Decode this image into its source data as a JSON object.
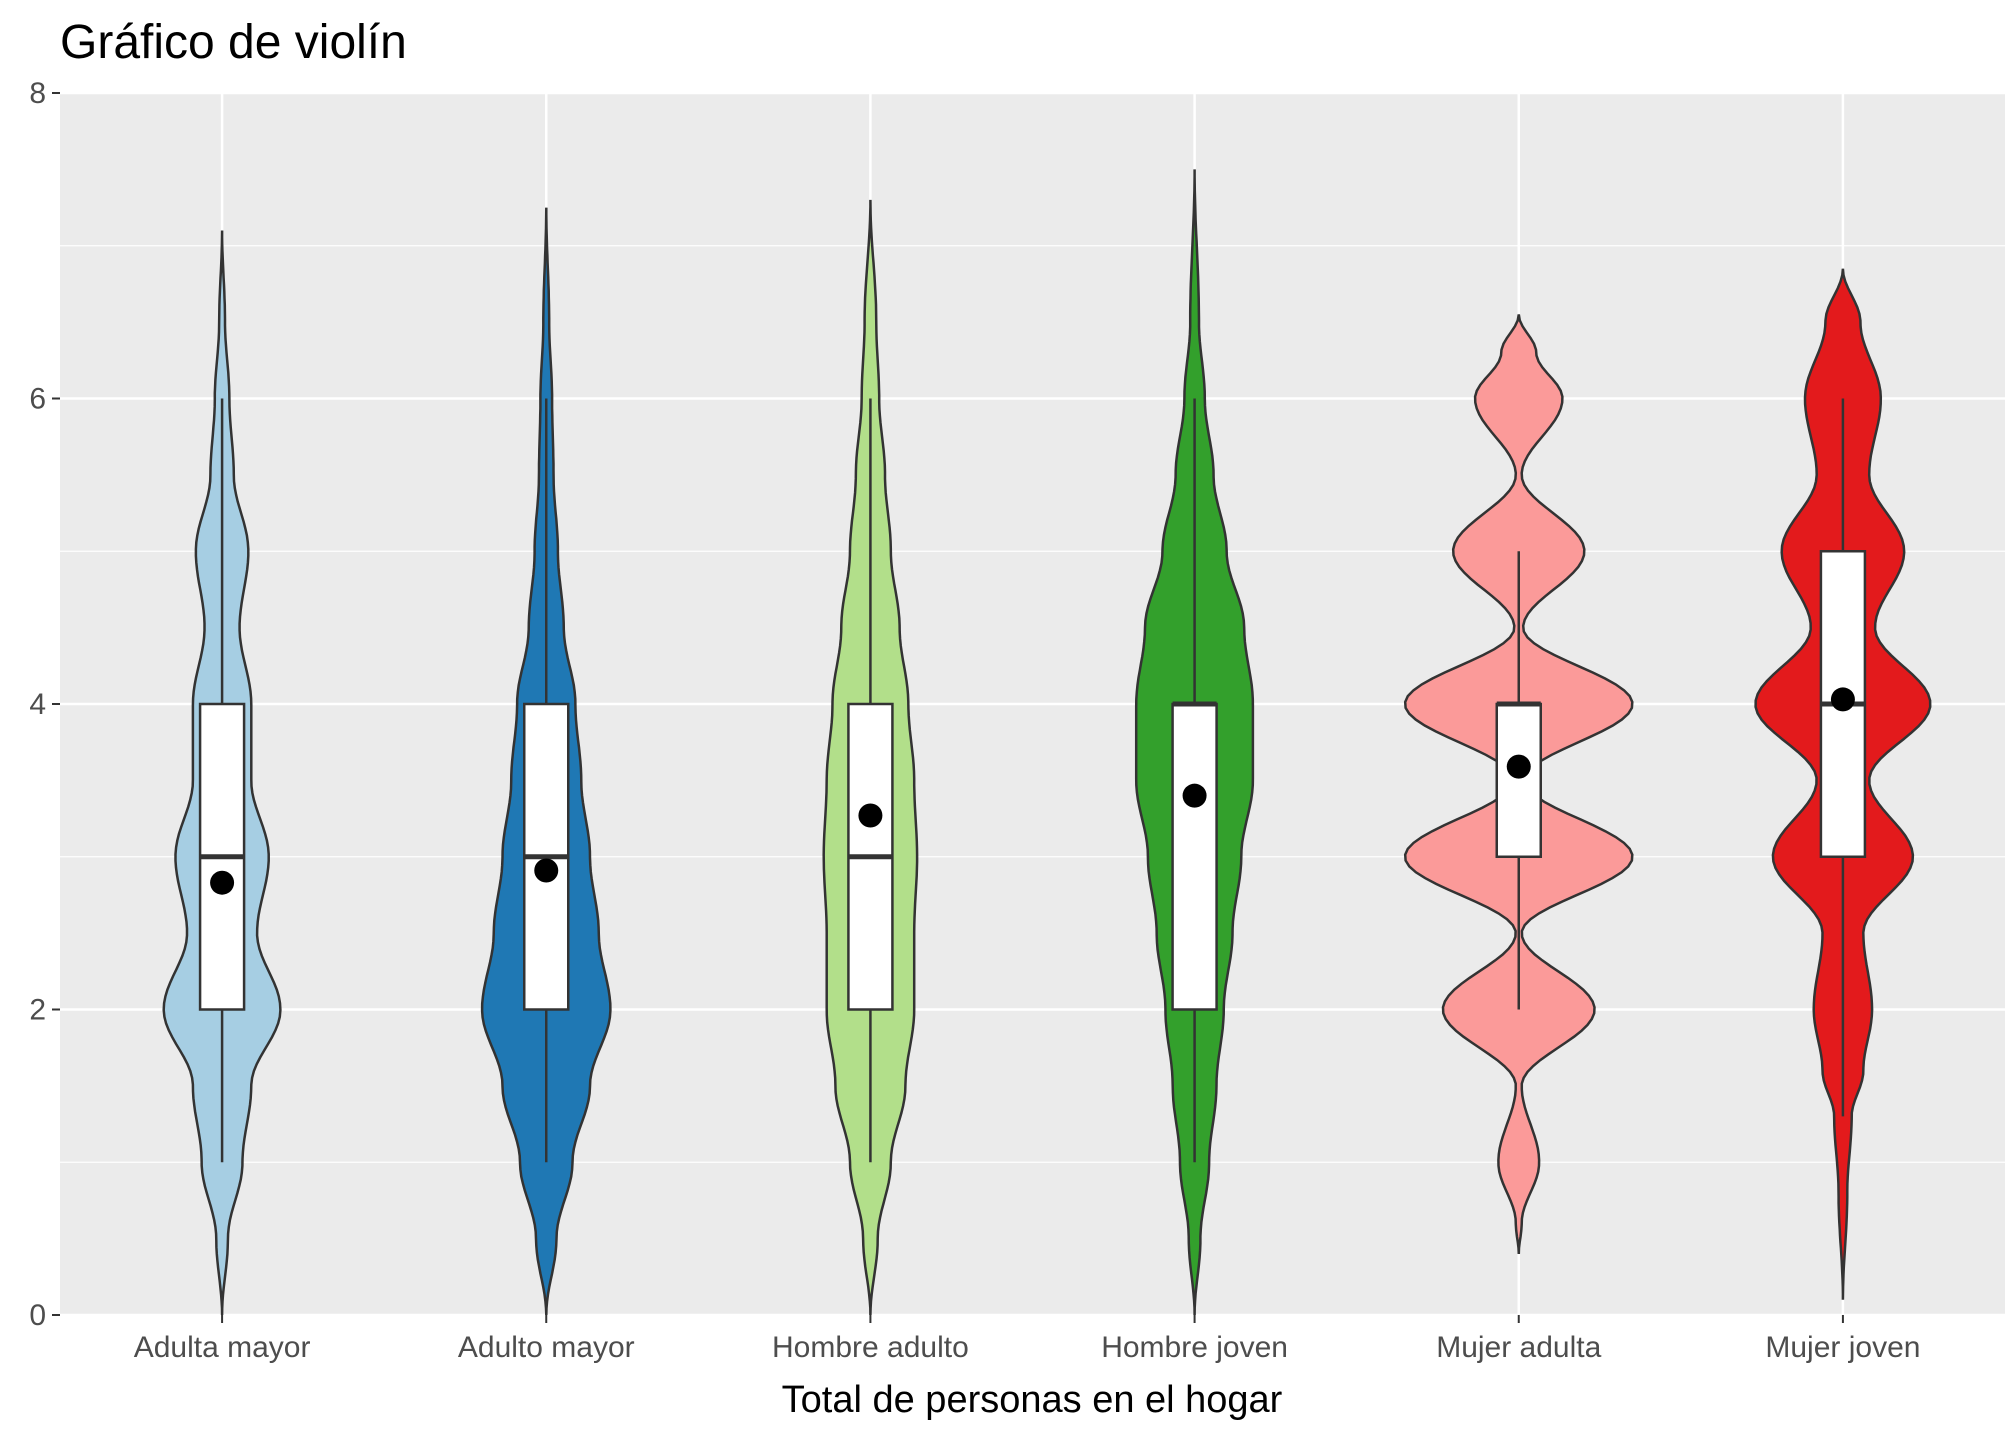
{
  "chart_data": {
    "type": "violin",
    "title": "Gráfico de violín",
    "xlabel": "Total de personas en el hogar",
    "ylabel": "",
    "ylim": [
      0,
      8
    ],
    "yticks": [
      0,
      2,
      4,
      6,
      8
    ],
    "grid": true,
    "legend": "none",
    "categories": [
      "Adulta mayor",
      "Adulto mayor",
      "Hombre adulto",
      "Hombre joven",
      "Mujer adulta",
      "Mujer joven"
    ],
    "series": [
      {
        "category": "Adulta mayor",
        "color": "#A6CEE3",
        "box": {
          "whisker_low": 1,
          "q1": 2,
          "median": 3,
          "q3": 4,
          "whisker_high": 6
        },
        "mean": 2.83,
        "violin_range": [
          0,
          7.1
        ],
        "density": [
          [
            0,
            0.0
          ],
          [
            0.5,
            0.04
          ],
          [
            1.0,
            0.14
          ],
          [
            1.5,
            0.2
          ],
          [
            2.0,
            0.4
          ],
          [
            2.5,
            0.24
          ],
          [
            3.0,
            0.32
          ],
          [
            3.5,
            0.2
          ],
          [
            4.0,
            0.2
          ],
          [
            4.5,
            0.12
          ],
          [
            5.0,
            0.18
          ],
          [
            5.5,
            0.08
          ],
          [
            6.0,
            0.05
          ],
          [
            6.5,
            0.02
          ],
          [
            7.1,
            0.0
          ]
        ]
      },
      {
        "category": "Adulto mayor",
        "color": "#1F78B4",
        "box": {
          "whisker_low": 1,
          "q1": 2,
          "median": 3,
          "q3": 4,
          "whisker_high": 6
        },
        "mean": 2.91,
        "violin_range": [
          0,
          7.25
        ],
        "density": [
          [
            0,
            0.0
          ],
          [
            0.5,
            0.07
          ],
          [
            1.0,
            0.18
          ],
          [
            1.5,
            0.3
          ],
          [
            2.0,
            0.44
          ],
          [
            2.5,
            0.36
          ],
          [
            3.0,
            0.3
          ],
          [
            3.5,
            0.24
          ],
          [
            4.0,
            0.2
          ],
          [
            4.5,
            0.12
          ],
          [
            5.0,
            0.08
          ],
          [
            5.5,
            0.05
          ],
          [
            6.0,
            0.04
          ],
          [
            6.5,
            0.02
          ],
          [
            7.25,
            0.0
          ]
        ]
      },
      {
        "category": "Hombre adulto",
        "color": "#B2DF8A",
        "box": {
          "whisker_low": 1,
          "q1": 2,
          "median": 3,
          "q3": 4,
          "whisker_high": 6
        },
        "mean": 3.27,
        "violin_range": [
          0,
          7.3
        ],
        "density": [
          [
            0,
            0.0
          ],
          [
            0.5,
            0.05
          ],
          [
            1.0,
            0.14
          ],
          [
            1.5,
            0.24
          ],
          [
            2.0,
            0.3
          ],
          [
            2.5,
            0.3
          ],
          [
            3.0,
            0.32
          ],
          [
            3.5,
            0.3
          ],
          [
            4.0,
            0.26
          ],
          [
            4.5,
            0.2
          ],
          [
            5.0,
            0.14
          ],
          [
            5.5,
            0.1
          ],
          [
            6.0,
            0.06
          ],
          [
            6.5,
            0.04
          ],
          [
            7.3,
            0.0
          ]
        ]
      },
      {
        "category": "Hombre joven",
        "color": "#33A02C",
        "box": {
          "whisker_low": 1,
          "q1": 2,
          "median": 4,
          "q3": 4,
          "whisker_high": 6
        },
        "mean": 3.4,
        "violin_range": [
          0,
          7.5
        ],
        "density": [
          [
            0,
            0.0
          ],
          [
            0.5,
            0.04
          ],
          [
            1.0,
            0.1
          ],
          [
            1.5,
            0.15
          ],
          [
            2.0,
            0.2
          ],
          [
            2.5,
            0.26
          ],
          [
            3.0,
            0.32
          ],
          [
            3.5,
            0.4
          ],
          [
            4.0,
            0.4
          ],
          [
            4.5,
            0.34
          ],
          [
            5.0,
            0.22
          ],
          [
            5.5,
            0.13
          ],
          [
            6.0,
            0.07
          ],
          [
            6.5,
            0.03
          ],
          [
            7.5,
            0.0
          ]
        ]
      },
      {
        "category": "Mujer adulta",
        "color": "#FB9A99",
        "box": {
          "whisker_low": 2,
          "q1": 3,
          "median": 4,
          "q3": 4,
          "whisker_high": 5
        },
        "mean": 3.59,
        "violin_range": [
          0.4,
          6.55
        ],
        "density": [
          [
            0.4,
            0.0
          ],
          [
            0.6,
            0.02
          ],
          [
            1.0,
            0.14
          ],
          [
            1.5,
            0.02
          ],
          [
            2.0,
            0.52
          ],
          [
            2.5,
            0.02
          ],
          [
            3.0,
            0.78
          ],
          [
            3.5,
            0.04
          ],
          [
            4.0,
            0.78
          ],
          [
            4.5,
            0.03
          ],
          [
            5.0,
            0.45
          ],
          [
            5.5,
            0.02
          ],
          [
            6.0,
            0.3
          ],
          [
            6.3,
            0.12
          ],
          [
            6.55,
            0.0
          ]
        ]
      },
      {
        "category": "Mujer joven",
        "color": "#E31A1C",
        "box": {
          "whisker_low": 1.3,
          "q1": 3,
          "median": 4,
          "q3": 5,
          "whisker_high": 6
        },
        "mean": 4.03,
        "violin_range": [
          0.1,
          6.85
        ],
        "density": [
          [
            0.1,
            0.0
          ],
          [
            0.8,
            0.03
          ],
          [
            1.3,
            0.06
          ],
          [
            1.6,
            0.14
          ],
          [
            2.0,
            0.2
          ],
          [
            2.5,
            0.14
          ],
          [
            3.0,
            0.48
          ],
          [
            3.5,
            0.18
          ],
          [
            4.0,
            0.6
          ],
          [
            4.5,
            0.22
          ],
          [
            5.0,
            0.42
          ],
          [
            5.5,
            0.18
          ],
          [
            6.0,
            0.26
          ],
          [
            6.5,
            0.12
          ],
          [
            6.85,
            0.0
          ]
        ]
      }
    ]
  }
}
